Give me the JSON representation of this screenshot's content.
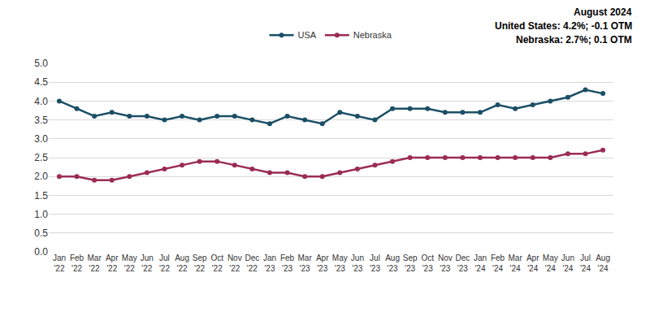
{
  "chart_data": {
    "type": "line",
    "categories": [
      "Jan '22",
      "Feb '22",
      "Mar '22",
      "Apr '22",
      "May '22",
      "Jun '22",
      "Jul '22",
      "Aug '22",
      "Sep '22",
      "Oct '22",
      "Nov '22",
      "Dec '22",
      "Jan '23",
      "Feb '23",
      "Mar '23",
      "Apr '23",
      "May '23",
      "Jun '23",
      "Jul '23",
      "Aug '23",
      "Sep '23",
      "Oct '23",
      "Nov '23",
      "Dec '23",
      "Jan '24",
      "Feb '24",
      "Mar '24",
      "Apr '24",
      "May '24",
      "Jun '24",
      "Jul '24",
      "Aug '24"
    ],
    "series": [
      {
        "name": "USA",
        "color": "#1b4f66",
        "marker": "circle",
        "values": [
          4.0,
          3.8,
          3.6,
          3.7,
          3.6,
          3.6,
          3.5,
          3.6,
          3.5,
          3.6,
          3.6,
          3.5,
          3.4,
          3.6,
          3.5,
          3.4,
          3.7,
          3.6,
          3.5,
          3.8,
          3.8,
          3.8,
          3.7,
          3.7,
          3.7,
          3.9,
          3.8,
          3.9,
          4.0,
          4.1,
          4.3,
          4.2
        ]
      },
      {
        "name": "Nebraska",
        "color": "#9b2b56",
        "marker": "circle",
        "values": [
          2.0,
          2.0,
          1.9,
          1.9,
          2.0,
          2.1,
          2.2,
          2.3,
          2.4,
          2.4,
          2.3,
          2.2,
          2.1,
          2.1,
          2.0,
          2.0,
          2.1,
          2.2,
          2.3,
          2.4,
          2.5,
          2.5,
          2.5,
          2.5,
          2.5,
          2.5,
          2.5,
          2.5,
          2.5,
          2.6,
          2.6,
          2.7
        ]
      }
    ],
    "annotations": [
      "August 2024",
      "United States: 4.2%; -0.1 OTM",
      "Nebraska: 2.7%; 0.1 OTM"
    ],
    "ylim": [
      0,
      5
    ],
    "yticks": [
      {
        "value": 0,
        "label": "0.0"
      },
      0.5,
      {
        "value": 1,
        "label": "1.0"
      },
      1.5,
      {
        "value": 2,
        "label": "2.0"
      },
      2.5,
      {
        "value": 3,
        "label": "3.0"
      },
      3.5,
      {
        "value": 4,
        "label": "4.0"
      },
      4.5,
      {
        "value": 5,
        "label": "5.0"
      }
    ],
    "grid": true,
    "legend": "top"
  }
}
